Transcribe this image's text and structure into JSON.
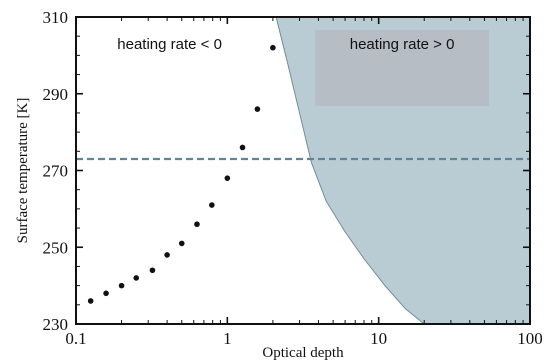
{
  "chart_data": {
    "type": "scatter",
    "xlabel": "Optical depth",
    "ylabel": "Surface temperature [K]",
    "xscale": "log",
    "xlim": [
      0.1,
      100
    ],
    "ylim": [
      230,
      310
    ],
    "xticks": [
      {
        "value": 0.1,
        "label": "0.1"
      },
      {
        "value": 1,
        "label": "1"
      },
      {
        "value": 10,
        "label": "10"
      },
      {
        "value": 100,
        "label": "100"
      }
    ],
    "yticks": [
      {
        "value": 230,
        "label": "230"
      },
      {
        "value": 250,
        "label": "250"
      },
      {
        "value": 270,
        "label": "270"
      },
      {
        "value": 290,
        "label": "290"
      },
      {
        "value": 310,
        "label": "310"
      }
    ],
    "points": [
      {
        "x": 0.125,
        "y": 236
      },
      {
        "x": 0.158,
        "y": 238
      },
      {
        "x": 0.2,
        "y": 240
      },
      {
        "x": 0.25,
        "y": 242
      },
      {
        "x": 0.32,
        "y": 244
      },
      {
        "x": 0.4,
        "y": 248
      },
      {
        "x": 0.5,
        "y": 251
      },
      {
        "x": 0.63,
        "y": 256
      },
      {
        "x": 0.79,
        "y": 261
      },
      {
        "x": 1.0,
        "y": 268
      },
      {
        "x": 1.26,
        "y": 276
      },
      {
        "x": 1.58,
        "y": 286
      },
      {
        "x": 2.0,
        "y": 302
      }
    ],
    "reference_line": {
      "y": 273,
      "style": "dashed",
      "color": "#5f8598"
    },
    "shaded_region": {
      "color": "#b9ccd4",
      "edge_color": "#6f8d9c",
      "boundary": [
        {
          "x": 2.1,
          "y": 310
        },
        {
          "x": 2.5,
          "y": 298
        },
        {
          "x": 3.0,
          "y": 285
        },
        {
          "x": 3.6,
          "y": 272
        },
        {
          "x": 4.5,
          "y": 262
        },
        {
          "x": 6.0,
          "y": 254
        },
        {
          "x": 8.0,
          "y": 247
        },
        {
          "x": 11.0,
          "y": 240
        },
        {
          "x": 15.0,
          "y": 234
        },
        {
          "x": 20.0,
          "y": 230
        }
      ]
    },
    "annotations": [
      {
        "text": "heating rate < 0",
        "x": 0.18,
        "y": 297
      },
      {
        "text": "heating rate > 0",
        "x": 6.0,
        "y": 297,
        "box_color": "#b5b8c0"
      }
    ],
    "grid": false,
    "legend": "none"
  }
}
